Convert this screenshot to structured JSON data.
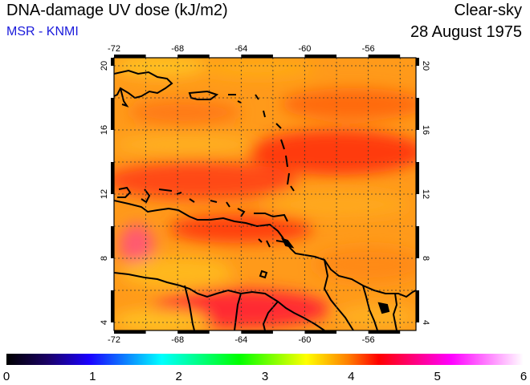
{
  "header": {
    "title": "DNA-damage UV dose (kJ/m2)",
    "source": "MSR - KNMI",
    "condition": "Clear-sky",
    "date": "28 August 1975"
  },
  "map": {
    "lon_range": [
      -72,
      -53
    ],
    "lat_range": [
      3.5,
      20.5
    ],
    "lon_ticks": [
      "-72",
      "-68",
      "-64",
      "-60",
      "-56"
    ],
    "lat_ticks": [
      "4",
      "8",
      "12",
      "16",
      "20"
    ],
    "grid": true
  },
  "colorbar": {
    "min": 0,
    "max": 6,
    "labels": [
      "0",
      "1",
      "2",
      "3",
      "4",
      "5",
      "6"
    ],
    "colors": [
      "#000000",
      "#1a00ff",
      "#00ffff",
      "#00ff00",
      "#ffff00",
      "#ff8000",
      "#ff0000",
      "#ff00ff",
      "#ffffff"
    ]
  }
}
